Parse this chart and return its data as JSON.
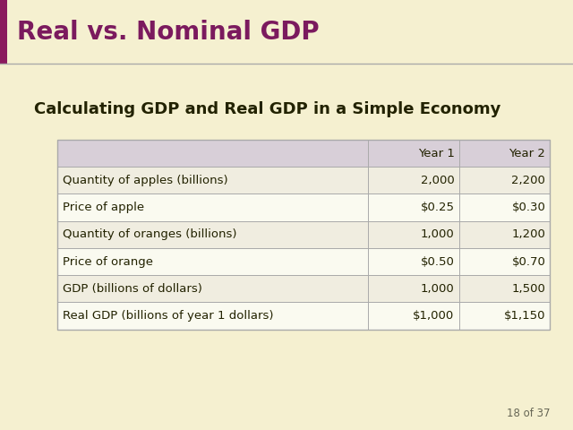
{
  "title": "Real vs. Nominal GDP",
  "subtitle": "Calculating GDP and Real GDP in a Simple Economy",
  "background_color": "#f5f0d0",
  "title_bar_color": "#f5f0d0",
  "title_text_color": "#7b1a5e",
  "title_bar_left_color": "#8b1a5e",
  "subtitle_color": "#222200",
  "page_label": "18 of 37",
  "header_row": [
    "",
    "Year 1",
    "Year 2"
  ],
  "header_bg": "#d8cfd8",
  "row_data": [
    [
      "Quantity of apples (billions)",
      "2,000",
      "2,200"
    ],
    [
      "Price of apple",
      "$0.25",
      "$0.30"
    ],
    [
      "Quantity of oranges (billions)",
      "1,000",
      "1,200"
    ],
    [
      "Price of orange",
      "$0.50",
      "$0.70"
    ],
    [
      "GDP (billions of dollars)",
      "1,000",
      "1,500"
    ],
    [
      "Real GDP (billions of year 1 dollars)",
      "$1,000",
      "$1,150"
    ]
  ],
  "row_bg_odd": "#f0ede0",
  "row_bg_even": "#fafaf0",
  "table_border_color": "#aaaaaa",
  "table_text_color": "#222200",
  "divider_color": "#aaaaaa",
  "title_fontsize": 20,
  "subtitle_fontsize": 13,
  "table_fontsize": 9.5,
  "header_fontsize": 9.5
}
